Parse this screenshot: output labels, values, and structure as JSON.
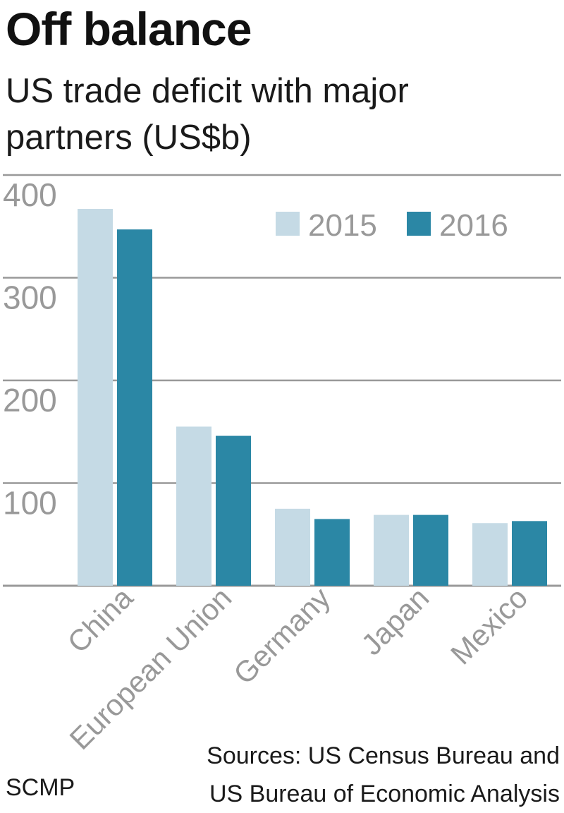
{
  "header": {
    "title": "Off balance",
    "subtitle": "US trade deficit with major partners (US$b)"
  },
  "footer": {
    "sources_line1": "Sources: US Census Bureau and",
    "sources_line2": "US Bureau of Economic Analysis",
    "credit": "SCMP"
  },
  "colors": {
    "series_2015": "#c5dae5",
    "series_2016": "#2b87a5",
    "grid": "#999999",
    "tick_text": "#999999"
  },
  "chart_data": {
    "type": "bar",
    "title": "Off balance",
    "subtitle": "US trade deficit with major partners (US$b)",
    "categories": [
      "China",
      "European Union",
      "Germany",
      "Japan",
      "Mexico"
    ],
    "series": [
      {
        "name": "2015",
        "values": [
          367,
          155,
          75,
          69,
          61
        ]
      },
      {
        "name": "2016",
        "values": [
          347,
          146,
          65,
          69,
          63
        ]
      }
    ],
    "y_ticks": [
      "100",
      "200",
      "300",
      "400"
    ],
    "ylim": [
      0,
      400
    ],
    "grid": true,
    "legend_position": "top-right"
  }
}
